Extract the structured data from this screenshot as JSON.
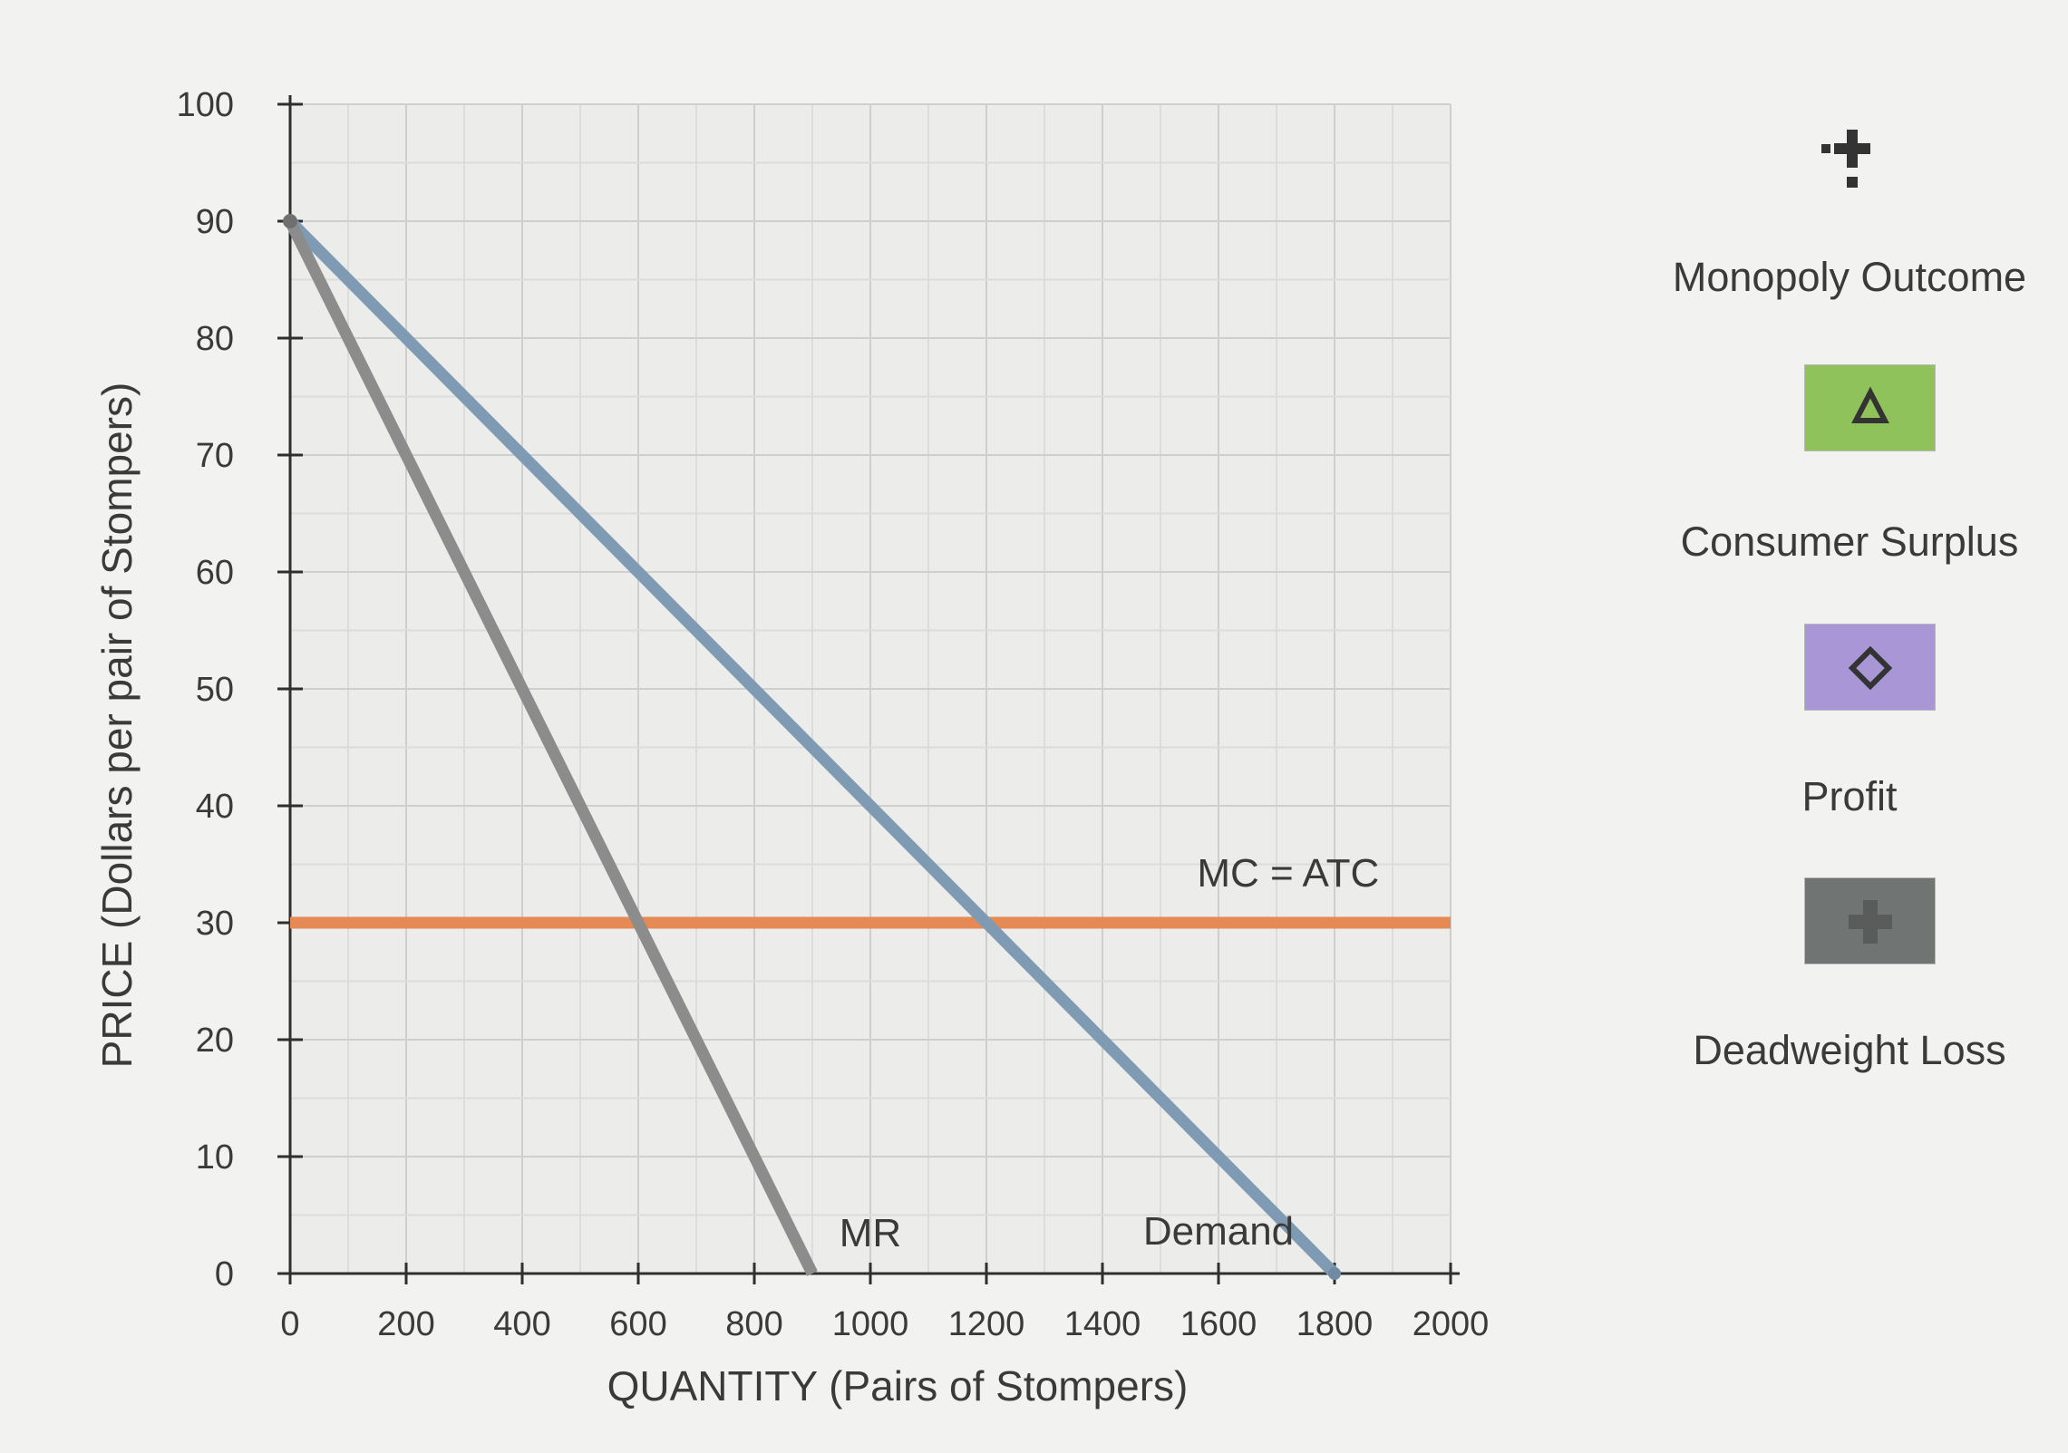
{
  "chart_data": {
    "type": "line",
    "title": "",
    "xlabel": "QUANTITY (Pairs of Stompers)",
    "ylabel": "PRICE (Dollars per pair of Stompers)",
    "xlim": [
      0,
      2000
    ],
    "ylim": [
      0,
      100
    ],
    "xticks": [
      "0",
      "200",
      "400",
      "600",
      "800",
      "1000",
      "1200",
      "1400",
      "1600",
      "1800",
      "2000"
    ],
    "yticks": [
      "0",
      "10",
      "20",
      "30",
      "40",
      "50",
      "60",
      "70",
      "80",
      "90",
      "100"
    ],
    "grid": true,
    "series": [
      {
        "name": "Demand",
        "color": "#7f9bb3",
        "points": [
          [
            0,
            90
          ],
          [
            1800,
            0
          ]
        ]
      },
      {
        "name": "MR",
        "color": "#8c8c8c",
        "points": [
          [
            0,
            90
          ],
          [
            900,
            0
          ]
        ]
      },
      {
        "name": "MC = ATC",
        "color": "#e58a55",
        "points": [
          [
            0,
            30
          ],
          [
            2000,
            30
          ]
        ]
      }
    ]
  },
  "legend": {
    "items": [
      {
        "label": "Monopoly Outcome",
        "icon": "plus-marker-icon",
        "swatch_color": ""
      },
      {
        "label": "Consumer Surplus",
        "icon": "triangle-icon",
        "swatch_color": "#8fc25a"
      },
      {
        "label": "Profit",
        "icon": "diamond-icon",
        "swatch_color": "#a996d6"
      },
      {
        "label": "Deadweight Loss",
        "icon": "plus-icon",
        "swatch_color": "#707472"
      }
    ]
  }
}
